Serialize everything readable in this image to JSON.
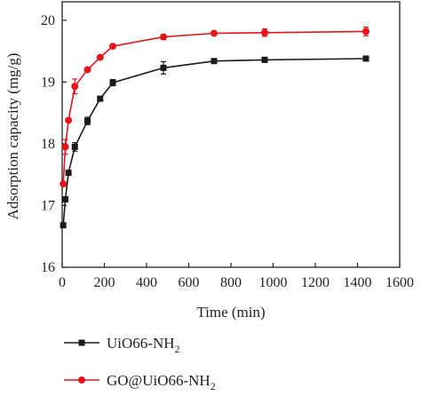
{
  "chart_data": {
    "type": "line",
    "xlabel": "Time (min)",
    "ylabel": "Adsorption capacity (mg/g)",
    "xlim": [
      0,
      1600
    ],
    "ylim": [
      16,
      20.3
    ],
    "x_ticks": [
      0,
      200,
      400,
      600,
      800,
      1000,
      1200,
      1400,
      1600
    ],
    "y_ticks": [
      16,
      17,
      18,
      19,
      20
    ],
    "grid": false,
    "legend_position": "bottom",
    "series": [
      {
        "name": "UiO66-NH",
        "name_sub": "2",
        "color": "#1a1a1a",
        "marker": "square",
        "x": [
          5,
          15,
          30,
          60,
          120,
          180,
          240,
          480,
          720,
          960,
          1440
        ],
        "y": [
          16.68,
          17.1,
          17.53,
          17.95,
          18.37,
          18.73,
          18.99,
          19.23,
          19.34,
          19.36,
          19.38
        ],
        "error": [
          0,
          0,
          0,
          0.07,
          0.06,
          0,
          0.05,
          0.1,
          0,
          0.04,
          0
        ]
      },
      {
        "name": "GO@UiO66-NH",
        "name_sub": "2",
        "color": "#e8141c",
        "marker": "circle",
        "x": [
          5,
          15,
          30,
          60,
          120,
          180,
          240,
          480,
          720,
          960,
          1440
        ],
        "y": [
          17.35,
          17.95,
          18.38,
          18.93,
          19.2,
          19.4,
          19.58,
          19.73,
          19.79,
          19.8,
          19.82
        ],
        "error": [
          0,
          0.12,
          0,
          0.12,
          0,
          0,
          0,
          0.04,
          0,
          0.06,
          0.07
        ]
      }
    ]
  }
}
